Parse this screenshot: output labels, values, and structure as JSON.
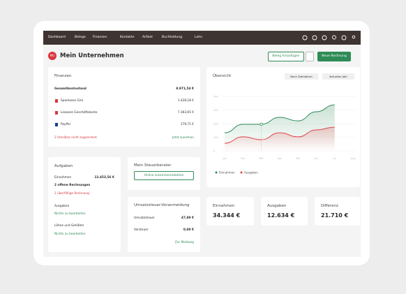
{
  "nav": {
    "items": [
      "Dashboard",
      "Belege",
      "Finanzen",
      "Kontakte",
      "Artikel",
      "Buchhaltung",
      "Lohn"
    ]
  },
  "header": {
    "avatar": "MU",
    "title": "Mein Unternehmen",
    "btn_add": "Beleg hinzufügen",
    "btn_new": "Neue Rechnung"
  },
  "finanzen": {
    "title": "Finanzen",
    "rows": [
      [
        "Gesamtkontostand",
        "8.971,54 €"
      ],
      [
        "Sparkasse Giro",
        "1.428,18 €"
      ],
      [
        "Lexware Geschäftskonto",
        "7.363,65 €"
      ],
      [
        "PayPal",
        "179,71 €"
      ]
    ],
    "warning": "2 Umsätze nicht zugeordnet",
    "link": "Jetzt zuordnen"
  },
  "overview": {
    "title": "Übersicht",
    "filter1": "Nach Zahldatum",
    "filter2": "Aktuelles Jahr"
  },
  "chart_data": {
    "type": "line",
    "categories": [
      "Jan",
      "Feb",
      "Mär",
      "Apr",
      "Mai",
      "Jun",
      "Jul",
      "Aug"
    ],
    "series": [
      {
        "name": "Einnahmen",
        "color": "#2e8b57",
        "values": [
          133,
          195,
          195,
          246,
          220,
          287,
          338,
          null
        ]
      },
      {
        "name": "Ausgaben",
        "color": "#e0474c",
        "values": [
          56,
          103,
          82,
          133,
          103,
          154,
          174,
          null
        ]
      }
    ],
    "ylim": [
      0,
      400
    ],
    "yticks": [
      0,
      100,
      200,
      300,
      400
    ],
    "grid": true
  },
  "tasks": {
    "title": "Aufgaben",
    "income_label": "Einnahmen",
    "income_value": "13.453,56 €",
    "open": "2 offene Rechnungen",
    "overdue": "1 überfällige Rechnung",
    "expenses_label": "Ausgaben",
    "expenses_status": "Nichts zu bearbeiten",
    "wages_label": "Löhne und Gehälter",
    "wages_status": "Nichts zu bearbeiten"
  },
  "advisor": {
    "title": "Mein Steuerberater",
    "button": "Online zusammenarbeiten"
  },
  "vat": {
    "title": "Umsatzsteuer-Voranmeldung",
    "rows": [
      [
        "Umsatzsteuer",
        "47,89 €"
      ],
      [
        "Vorsteuer",
        "0,00 €"
      ]
    ],
    "link": "Zur Meldung"
  },
  "kpis": [
    {
      "label": "Einnahmen",
      "value": "34.344 €"
    },
    {
      "label": "Ausgaben",
      "value": "12.634 €"
    },
    {
      "label": "Differenz",
      "value": "21.710 €"
    }
  ]
}
